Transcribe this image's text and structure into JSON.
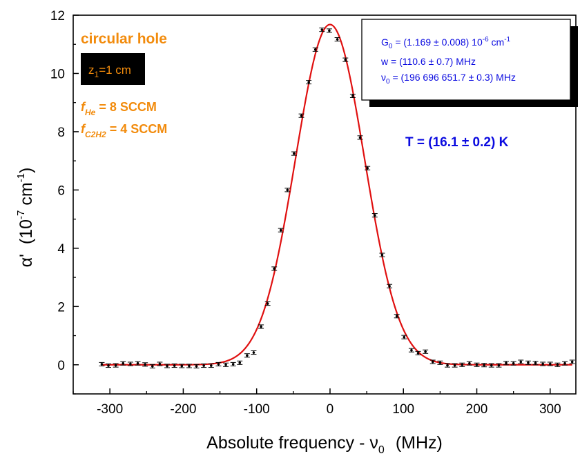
{
  "chart_data": {
    "type": "scatter",
    "xlabel": "Absolute frequency - ν",
    "xlabel_sub": "0",
    "xlabel_unit": "(MHz)",
    "ylabel": "α'",
    "ylabel_unit_a": "(10",
    "ylabel_unit_sup1": "-7",
    "ylabel_unit_b": " cm",
    "ylabel_unit_sup2": "-1",
    "ylabel_unit_c": ")",
    "xlim": [
      -350,
      335
    ],
    "ylim": [
      -1,
      12
    ],
    "xticks": [
      -300,
      -200,
      -100,
      0,
      100,
      200,
      300
    ],
    "yticks": [
      0,
      2,
      4,
      6,
      8,
      10,
      12
    ],
    "grid": false,
    "colors": {
      "fit": "#e01010",
      "data": "#000000",
      "annotation_orange": "#f28b0c",
      "annotation_blue": "#0a0ae0"
    },
    "series": [
      {
        "kind": "data-with-error-bars",
        "points": [
          [
            -311,
            0.02
          ],
          [
            -302,
            -0.03
          ],
          [
            -292,
            -0.02
          ],
          [
            -282,
            0.05
          ],
          [
            -272,
            0.03
          ],
          [
            -262,
            0.05
          ],
          [
            -252,
            0.01
          ],
          [
            -242,
            -0.05
          ],
          [
            -232,
            0.03
          ],
          [
            -222,
            -0.04
          ],
          [
            -212,
            -0.03
          ],
          [
            -202,
            -0.04
          ],
          [
            -192,
            -0.04
          ],
          [
            -182,
            -0.05
          ],
          [
            -172,
            -0.03
          ],
          [
            -162,
            -0.03
          ],
          [
            -152,
            0.02
          ],
          [
            -142,
            0.0
          ],
          [
            -132,
            0.02
          ],
          [
            -123,
            0.07
          ],
          [
            -113,
            0.32
          ],
          [
            -104,
            0.42
          ],
          [
            -94,
            1.31
          ],
          [
            -85,
            2.1
          ],
          [
            -76,
            3.3
          ],
          [
            -67,
            4.62
          ],
          [
            -58,
            6.0
          ],
          [
            -49,
            7.25
          ],
          [
            -39,
            8.55
          ],
          [
            -29,
            9.7
          ],
          [
            -20,
            10.82
          ],
          [
            -11,
            11.5
          ],
          [
            -1,
            11.47
          ],
          [
            10,
            11.17
          ],
          [
            21,
            10.47
          ],
          [
            31,
            9.23
          ],
          [
            41,
            7.8
          ],
          [
            51,
            6.75
          ],
          [
            61,
            5.13
          ],
          [
            71,
            3.77
          ],
          [
            81,
            2.7
          ],
          [
            91,
            1.67
          ],
          [
            101,
            0.95
          ],
          [
            111,
            0.5
          ],
          [
            120,
            0.4
          ],
          [
            130,
            0.45
          ],
          [
            140,
            0.1
          ],
          [
            150,
            0.07
          ],
          [
            160,
            -0.02
          ],
          [
            170,
            -0.02
          ],
          [
            180,
            0.0
          ],
          [
            190,
            0.05
          ],
          [
            200,
            0.0
          ],
          [
            210,
            -0.01
          ],
          [
            220,
            -0.02
          ],
          [
            230,
            -0.02
          ],
          [
            240,
            0.06
          ],
          [
            250,
            0.05
          ],
          [
            260,
            0.1
          ],
          [
            270,
            0.07
          ],
          [
            280,
            0.06
          ],
          [
            290,
            0.03
          ],
          [
            300,
            0.03
          ],
          [
            310,
            0.0
          ],
          [
            320,
            0.05
          ],
          [
            330,
            0.1
          ]
        ],
        "error": 0.06
      },
      {
        "kind": "gaussian-fit",
        "peak": 11.68,
        "center": 0,
        "fwhm": 110.6,
        "x_range": [
          -310,
          330
        ]
      }
    ],
    "annotations": {
      "hole_label": "circular hole",
      "z1_box": {
        "prefix": "z",
        "sub": "1",
        "suffix": "=1 cm"
      },
      "fHe": {
        "letter": "f",
        "sub": "He",
        "value": " = 8 SCCM"
      },
      "fC2H2": {
        "letter": "f",
        "sub": "C2H2",
        "value": " = 4 SCCM"
      },
      "temperature": "T = (16.1 ± 0.2) K",
      "fit_box": {
        "line1": {
          "a": "G",
          "a_sub": "0",
          "b": " = (1.169 ± 0.008)  10",
          "b_sup": "-6",
          "c": " cm",
          "c_sup": "-1"
        },
        "line2": "w = (110.6 ± 0.7)  MHz",
        "line3": {
          "a": "ν",
          "a_sub": "0",
          "b": " = (196 696 651.7 ± 0.3)  MHz"
        }
      }
    }
  }
}
